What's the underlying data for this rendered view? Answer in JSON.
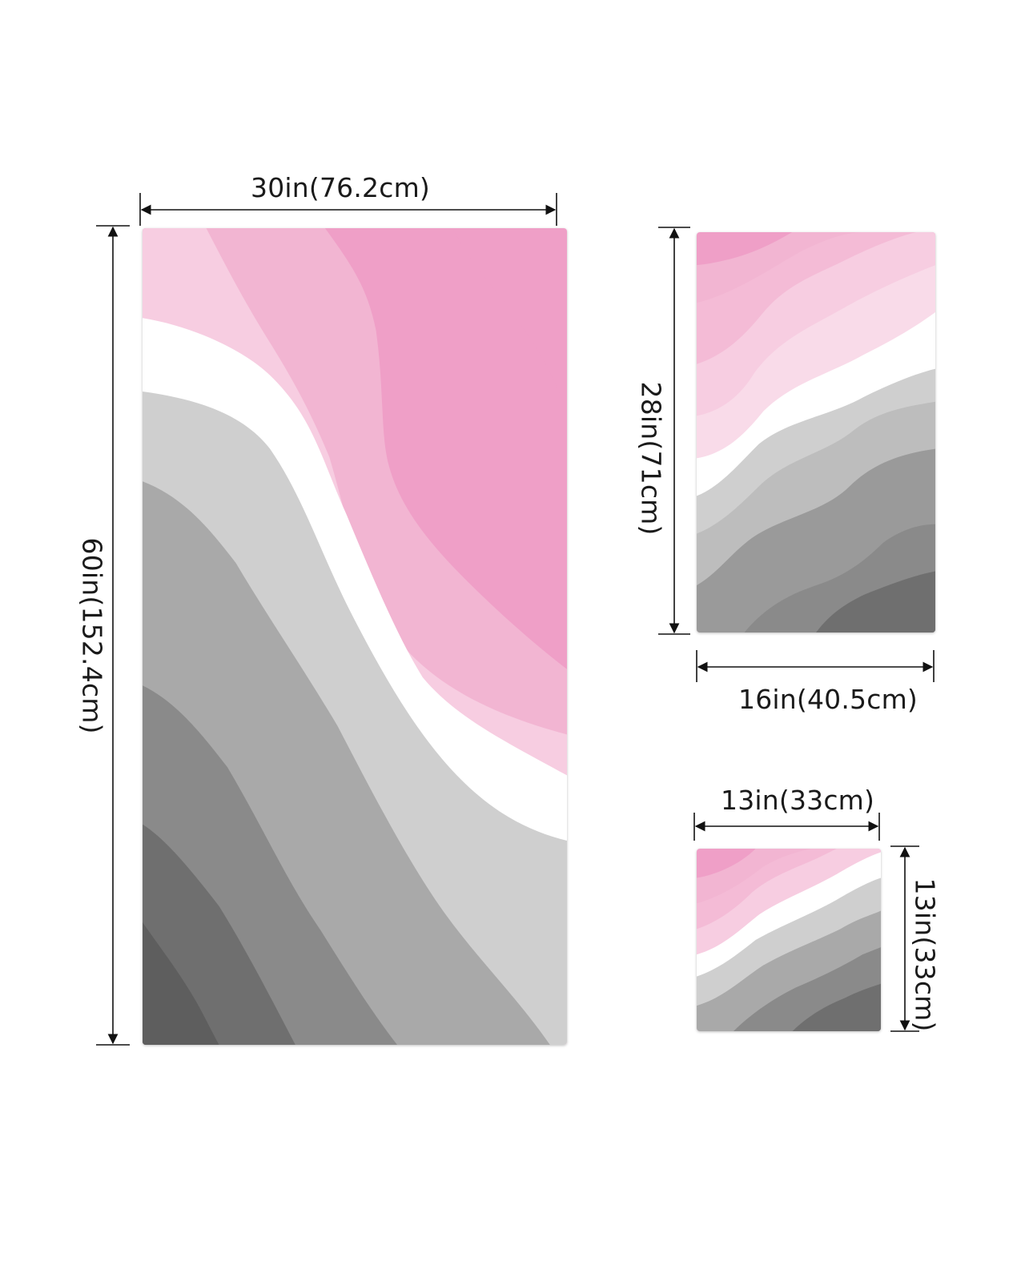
{
  "bath_towel": {
    "width_label": "30in(76.2cm)",
    "height_label": "60in(152.4cm)"
  },
  "hand_towel": {
    "height_label": "28in(71cm)",
    "width_label": "16in(40.5cm)"
  },
  "washcloth": {
    "width_label": "13in(33cm)",
    "height_label": "13in(33cm)"
  },
  "colors": {
    "pink_dark": "#ef9fc7",
    "pink_mid": "#f2b5d2",
    "pink_light": "#f7cde1",
    "white": "#ffffff",
    "gray_light": "#cfcfcf",
    "gray_mid": "#a9a9a9",
    "gray_dark": "#8a8a8a",
    "gray_deep": "#6f6f6f"
  }
}
